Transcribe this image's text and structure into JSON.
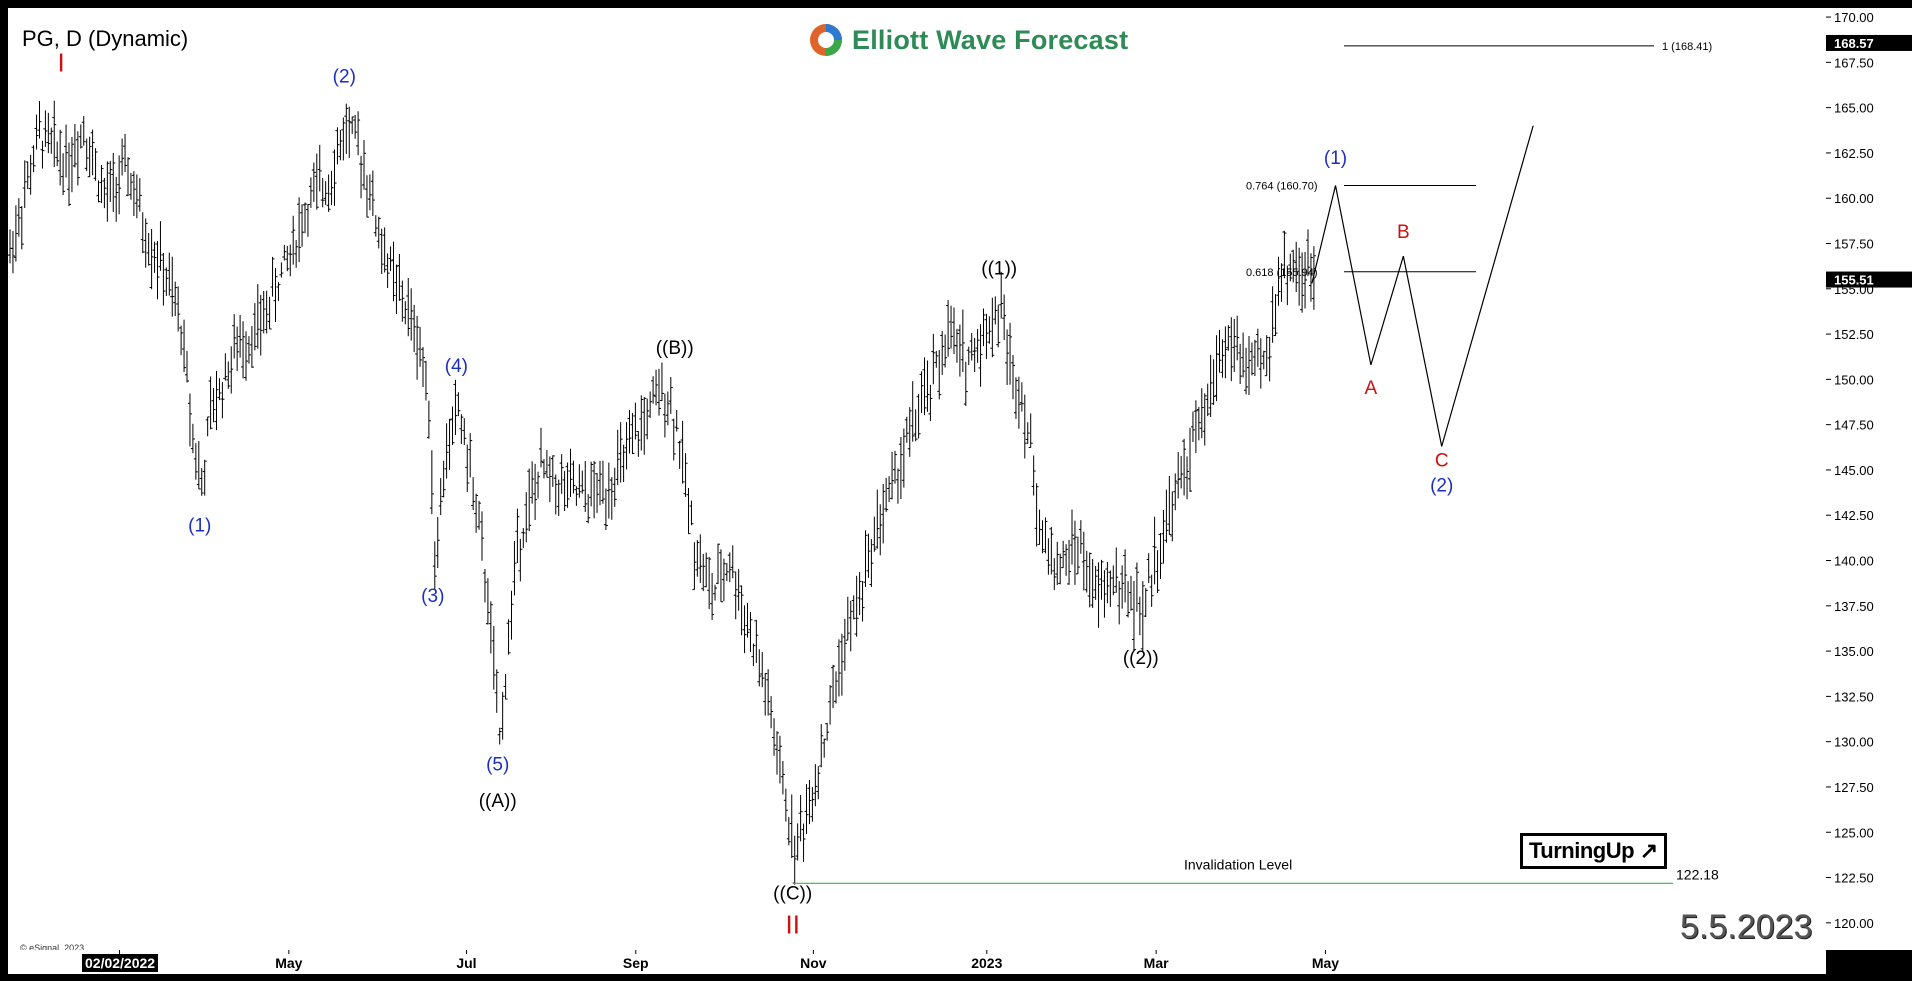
{
  "header": {
    "symbol_title": "PG, D (Dynamic)",
    "logo_text": "Elliott Wave Forecast",
    "date_stamp": "5.5.2023",
    "copyright": "© eSignal, 2023",
    "badge": "TurningUp",
    "x_start_label": "02/02/2022"
  },
  "colors": {
    "wave_blue": "#1a2fbf",
    "wave_red": "#cc1111",
    "wave_black": "#000000",
    "invalidation_line": "#33bb33",
    "logo_green": "#2e8b57"
  },
  "chart_data": {
    "type": "bar",
    "subtype": "ohlc",
    "y_range": [
      118.5,
      170.5
    ],
    "y_ticks": [
      120.0,
      122.5,
      125.0,
      127.5,
      130.0,
      132.5,
      135.0,
      137.5,
      140.0,
      142.5,
      145.0,
      147.5,
      150.0,
      152.5,
      155.0,
      157.5,
      160.0,
      162.5,
      165.0,
      167.5,
      170.0
    ],
    "x_tick_labels": [
      "Mar",
      "May",
      "Jul",
      "Sep",
      "Nov",
      "2023",
      "Mar",
      "May"
    ],
    "current_price_labels": [
      "168.57",
      "155.51"
    ],
    "price_path": [
      [
        0,
        157.0
      ],
      [
        10,
        163.5
      ],
      [
        20,
        162.0
      ],
      [
        25,
        164.0
      ],
      [
        32,
        160.0
      ],
      [
        40,
        161.5
      ],
      [
        46,
        158.0
      ],
      [
        52,
        156.0
      ],
      [
        58,
        153.0
      ],
      [
        62,
        147.0
      ],
      [
        65,
        144.0
      ],
      [
        68,
        148.0
      ],
      [
        76,
        151.5
      ],
      [
        85,
        153.0
      ],
      [
        95,
        157.0
      ],
      [
        102,
        160.0
      ],
      [
        108,
        161.0
      ],
      [
        114,
        164.0
      ],
      [
        120,
        162.0
      ],
      [
        125,
        158.0
      ],
      [
        130,
        155.5
      ],
      [
        134,
        154.0
      ],
      [
        138,
        152.5
      ],
      [
        142,
        149.0
      ],
      [
        144,
        140.0
      ],
      [
        148,
        146.0
      ],
      [
        152,
        148.5
      ],
      [
        157,
        144.0
      ],
      [
        162,
        138.0
      ],
      [
        166,
        130.0
      ],
      [
        172,
        141.0
      ],
      [
        180,
        145.0
      ],
      [
        188,
        144.0
      ],
      [
        195,
        143.5
      ],
      [
        202,
        144.0
      ],
      [
        210,
        146.0
      ],
      [
        216,
        148.0
      ],
      [
        222,
        149.5
      ],
      [
        226,
        147.5
      ],
      [
        232,
        141.0
      ],
      [
        238,
        138.0
      ],
      [
        244,
        140.0
      ],
      [
        250,
        136.5
      ],
      [
        256,
        133.0
      ],
      [
        262,
        127.5
      ],
      [
        266,
        124.0
      ],
      [
        270,
        126.0
      ],
      [
        276,
        130.0
      ],
      [
        282,
        135.0
      ],
      [
        288,
        138.0
      ],
      [
        294,
        142.0
      ],
      [
        300,
        144.5
      ],
      [
        306,
        147.5
      ],
      [
        312,
        149.5
      ],
      [
        318,
        152.5
      ],
      [
        324,
        151.0
      ],
      [
        330,
        152.5
      ],
      [
        336,
        154.0
      ],
      [
        340,
        150.0
      ],
      [
        343,
        149.5
      ],
      [
        346,
        146.0
      ],
      [
        350,
        141.0
      ],
      [
        356,
        139.5
      ],
      [
        362,
        141.0
      ],
      [
        368,
        138.0
      ],
      [
        374,
        139.0
      ],
      [
        380,
        138.0
      ],
      [
        384,
        137.0
      ],
      [
        388,
        140.0
      ],
      [
        394,
        143.0
      ],
      [
        400,
        146.0
      ],
      [
        406,
        148.5
      ],
      [
        410,
        151.5
      ],
      [
        414,
        152.0
      ],
      [
        420,
        150.5
      ],
      [
        426,
        151.0
      ],
      [
        430,
        155.5
      ],
      [
        434,
        156.5
      ],
      [
        438,
        155.5
      ],
      [
        442,
        156.0
      ]
    ],
    "projection_path": [
      [
        442,
        155.3
      ],
      [
        450,
        160.7
      ],
      [
        462,
        150.8
      ],
      [
        473,
        156.8
      ],
      [
        486,
        146.3
      ],
      [
        517,
        164.0
      ]
    ],
    "fib_levels": [
      {
        "ratio": 0.618,
        "value": 155.94,
        "label": "0.618 (155.94)"
      },
      {
        "ratio": 0.764,
        "value": 160.7,
        "label": "0.764 (160.70)"
      },
      {
        "ratio": 1,
        "value": 168.41,
        "label": "1 (168.41)"
      }
    ],
    "invalidation": {
      "label": "Invalidation Level",
      "value": 122.18,
      "value_label": "122.18"
    },
    "wave_labels": [
      {
        "text": "I",
        "color": "red",
        "x": 18,
        "price": 167.0
      },
      {
        "text": "(1)",
        "color": "blue",
        "x": 65,
        "price": 141.6
      },
      {
        "text": "(2)",
        "color": "blue",
        "x": 114,
        "price": 166.4
      },
      {
        "text": "(3)",
        "color": "blue",
        "x": 144,
        "price": 137.7
      },
      {
        "text": "(4)",
        "color": "blue",
        "x": 152,
        "price": 150.4
      },
      {
        "text": "(5)",
        "color": "blue",
        "x": 166,
        "price": 128.4
      },
      {
        "text": "((A))",
        "color": "black",
        "x": 166,
        "price": 126.4
      },
      {
        "text": "((B))",
        "color": "black",
        "x": 226,
        "price": 151.4
      },
      {
        "text": "((C))",
        "color": "black",
        "x": 266,
        "price": 121.3
      },
      {
        "text": "II",
        "color": "red",
        "x": 266,
        "price": 119.4
      },
      {
        "text": "((1))",
        "color": "black",
        "x": 336,
        "price": 155.8
      },
      {
        "text": "((2))",
        "color": "black",
        "x": 384,
        "price": 134.3
      },
      {
        "text": "(1)",
        "color": "blue",
        "x": 450,
        "price": 161.9
      },
      {
        "text": "A",
        "color": "red",
        "x": 462,
        "price": 149.2
      },
      {
        "text": "B",
        "color": "red",
        "x": 473,
        "price": 157.8
      },
      {
        "text": "C",
        "color": "red",
        "x": 486,
        "price": 145.2
      },
      {
        "text": "(2)",
        "color": "blue",
        "x": 486,
        "price": 143.8
      }
    ]
  }
}
